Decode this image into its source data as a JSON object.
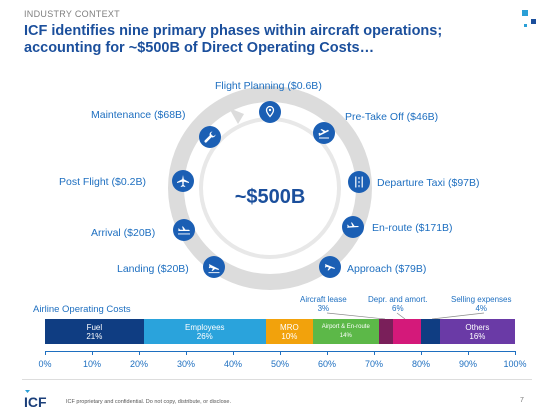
{
  "eyebrow": "INDUSTRY CONTEXT",
  "title": "ICF identifies nine primary phases within aircraft operations; accounting for ~$500B of Direct Operating Costs…",
  "center_value": "~$500B",
  "phases": [
    {
      "label": "Flight Planning ($0.6B)",
      "icon": "map-pin-icon"
    },
    {
      "label": "Pre-Take Off ($46B)",
      "icon": "takeoff-plane-icon"
    },
    {
      "label": "Departure Taxi ($97B)",
      "icon": "runway-icon"
    },
    {
      "label": "En-route ($171B)",
      "icon": "airplane-icon"
    },
    {
      "label": "Approach ($79B)",
      "icon": "approach-plane-icon"
    },
    {
      "label": "Landing ($20B)",
      "icon": "landing-plane-icon"
    },
    {
      "label": "Arrival ($20B)",
      "icon": "arrival-plane-icon"
    },
    {
      "label": "Post Flight ($0.2B)",
      "icon": "plane-icon"
    },
    {
      "label": "Maintenance ($68B)",
      "icon": "wrench-icon"
    }
  ],
  "cost_bar": {
    "title": "Airline Operating Costs",
    "segments": [
      {
        "name": "Fuel",
        "pct": "21%",
        "start": 0,
        "end": 21,
        "color": "#0f3d82"
      },
      {
        "name": "Employees",
        "pct": "26%",
        "start": 21,
        "end": 47,
        "color": "#2aa3dc"
      },
      {
        "name": "MRO",
        "pct": "10%",
        "start": 47,
        "end": 57,
        "color": "#f2a20c"
      },
      {
        "name": "Airport & En-route",
        "pct": "14%",
        "start": 57,
        "end": 71,
        "color": "#5cb848"
      },
      {
        "name": "",
        "pct": "",
        "start": 71,
        "end": 74,
        "color": "#7a1f5a"
      },
      {
        "name": "",
        "pct": "",
        "start": 74,
        "end": 80,
        "color": "#d4197a"
      },
      {
        "name": "",
        "pct": "",
        "start": 80,
        "end": 84,
        "color": "#0f3d82"
      },
      {
        "name": "Others",
        "pct": "16%",
        "start": 84,
        "end": 100,
        "color": "#6a3aa6"
      }
    ],
    "callouts": [
      {
        "name": "Aircraft lease",
        "pct": "3%"
      },
      {
        "name": "Depr. and amort.",
        "pct": "6%"
      },
      {
        "name": "Selling expenses",
        "pct": "4%"
      }
    ],
    "ticks": [
      "0%",
      "10%",
      "20%",
      "30%",
      "40%",
      "50%",
      "60%",
      "70%",
      "80%",
      "90%",
      "100%"
    ]
  },
  "footer": {
    "logo_text": "ICF",
    "text": "ICF proprietary and confidential. Do not copy, distribute, or disclose.",
    "page": "7"
  }
}
